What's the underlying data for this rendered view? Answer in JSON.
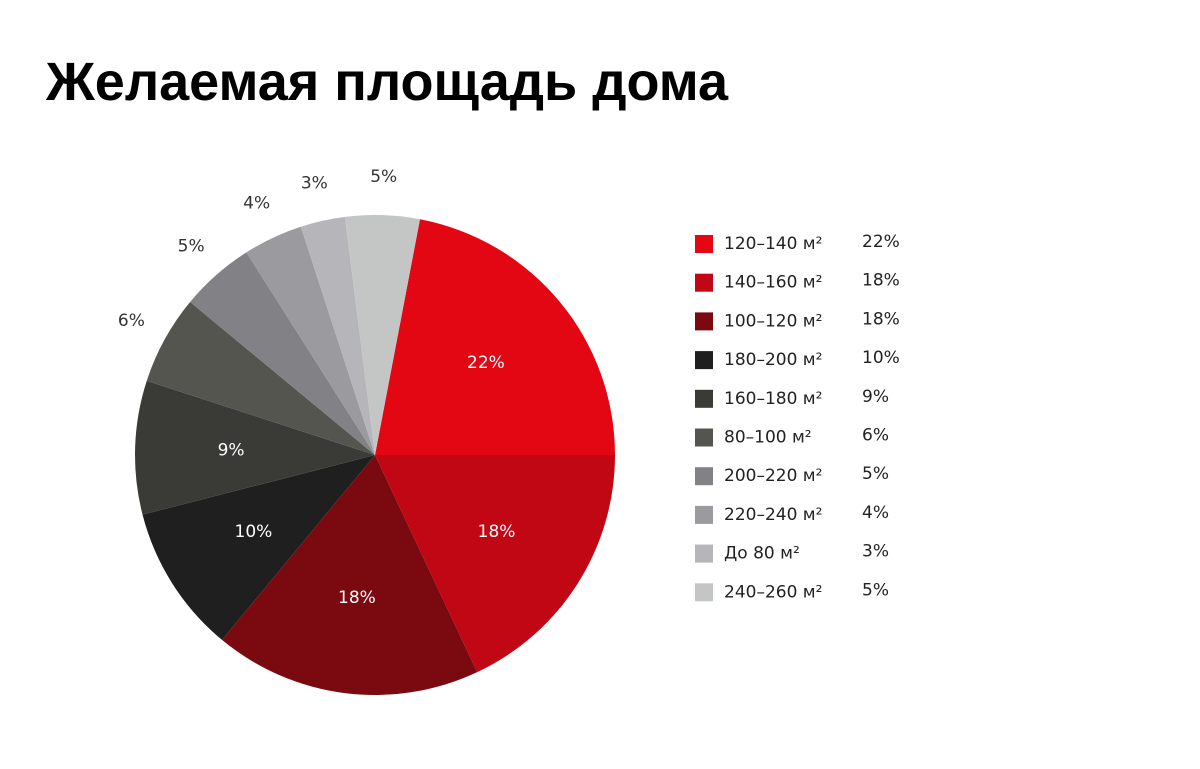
{
  "chart_data": {
    "type": "pie",
    "title": "Желаемая площадь дома",
    "categories": [
      "120–140 м²",
      "140–160 м²",
      "100–120 м²",
      "180–200 м²",
      "160–180 м²",
      "80–100 м²",
      "200–220 м²",
      "220–240 м²",
      "До 80 м²",
      "240–260 м²"
    ],
    "values": [
      22,
      18,
      18,
      10,
      9,
      6,
      5,
      4,
      3,
      5
    ],
    "value_labels": [
      "22%",
      "18%",
      "18%",
      "10%",
      "9%",
      "6%",
      "5%",
      "4%",
      "3%",
      "5%"
    ],
    "colors": [
      "#e30613",
      "#c00713",
      "#7a0a10",
      "#1f1f1f",
      "#3a3b37",
      "#55554f",
      "#818186",
      "#9a9a9f",
      "#b5b5ba",
      "#c4c5c5"
    ],
    "legend": "right"
  }
}
